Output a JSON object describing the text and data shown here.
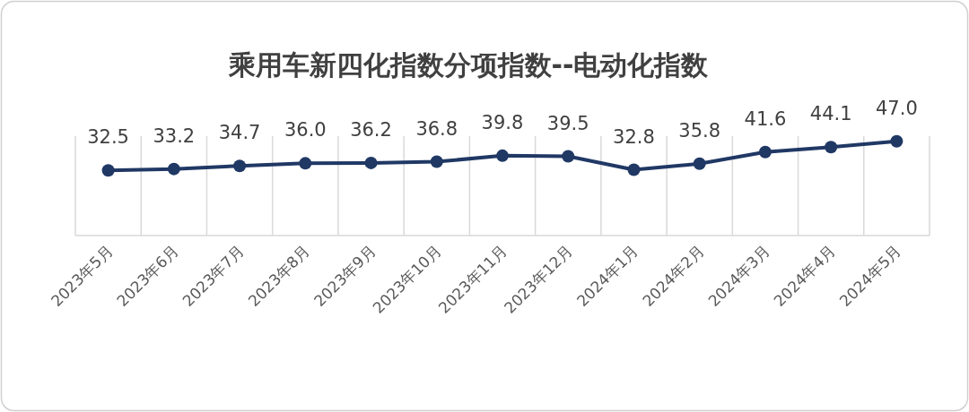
{
  "chart_data": {
    "type": "line",
    "title": "乘用车新四化指数分项指数--电动化指数",
    "categories": [
      "2023年5月",
      "2023年6月",
      "2023年7月",
      "2023年8月",
      "2023年9月",
      "2023年10月",
      "2023年11月",
      "2023年12月",
      "2024年1月",
      "2024年2月",
      "2024年3月",
      "2024年4月",
      "2024年5月"
    ],
    "series": [
      {
        "color": "#203864",
        "values": [
          32.5,
          33.2,
          34.7,
          36.0,
          36.2,
          36.8,
          39.8,
          39.5,
          32.8,
          35.8,
          41.6,
          44.1,
          47.0
        ],
        "value_labels": [
          "32.5",
          "33.2",
          "34.7",
          "36.0",
          "36.2",
          "36.8",
          "39.8",
          "39.5",
          "32.8",
          "35.8",
          "41.6",
          "44.1",
          "47.0"
        ]
      }
    ],
    "marker": "circle",
    "grid": "x"
  }
}
